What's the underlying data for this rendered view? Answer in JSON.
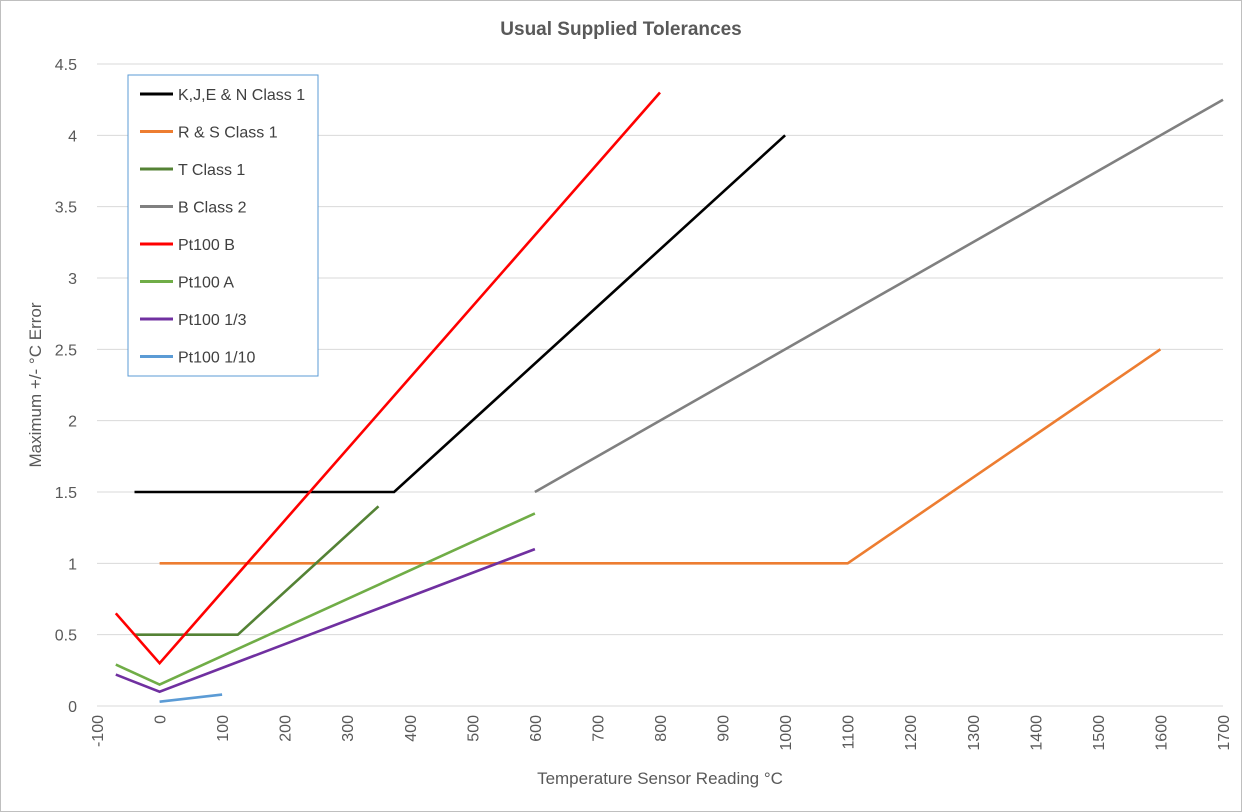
{
  "chart_data": {
    "type": "line",
    "title": "Usual Supplied Tolerances",
    "xlabel": "Temperature Sensor Reading °C",
    "ylabel": "Maximum +/- °C Error",
    "xlim": [
      -100,
      1700
    ],
    "ylim": [
      0,
      4.5
    ],
    "x_ticks": [
      -100,
      0,
      100,
      200,
      300,
      400,
      500,
      600,
      700,
      800,
      900,
      1000,
      1100,
      1200,
      1300,
      1400,
      1500,
      1600,
      1700
    ],
    "y_ticks": [
      0,
      0.5,
      1,
      1.5,
      2,
      2.5,
      3,
      3.5,
      4,
      4.5
    ],
    "y_tick_labels": [
      "0",
      "0.5",
      "1",
      "1.5",
      "2",
      "2.5",
      "3",
      "3.5",
      "4",
      "4.5"
    ],
    "grid": "horizontal",
    "legend_position": "top-left",
    "series": [
      {
        "name": "K,J,E & N Class 1",
        "color": "#000000",
        "points": [
          [
            -40,
            1.5
          ],
          [
            375,
            1.5
          ],
          [
            1000,
            4.0
          ]
        ]
      },
      {
        "name": "R & S Class 1",
        "color": "#ed7d31",
        "points": [
          [
            0,
            1.0
          ],
          [
            1100,
            1.0
          ],
          [
            1600,
            2.5
          ]
        ]
      },
      {
        "name": "T Class 1",
        "color": "#548235",
        "points": [
          [
            -40,
            0.5
          ],
          [
            125,
            0.5
          ],
          [
            350,
            1.4
          ]
        ]
      },
      {
        "name": "B Class 2",
        "color": "#808080",
        "points": [
          [
            600,
            1.5
          ],
          [
            1700,
            4.25
          ]
        ]
      },
      {
        "name": "Pt100 B",
        "color": "#ff0000",
        "points": [
          [
            -70,
            0.65
          ],
          [
            0,
            0.3
          ],
          [
            800,
            4.3
          ]
        ]
      },
      {
        "name": "Pt100 A",
        "color": "#70ad47",
        "points": [
          [
            -70,
            0.29
          ],
          [
            0,
            0.15
          ],
          [
            600,
            1.35
          ]
        ]
      },
      {
        "name": "Pt100 1/3",
        "color": "#7030a0",
        "points": [
          [
            -70,
            0.22
          ],
          [
            0,
            0.1
          ],
          [
            600,
            1.1
          ]
        ]
      },
      {
        "name": "Pt100 1/10",
        "color": "#5b9bd5",
        "points": [
          [
            0,
            0.03
          ],
          [
            100,
            0.08
          ]
        ]
      }
    ]
  }
}
